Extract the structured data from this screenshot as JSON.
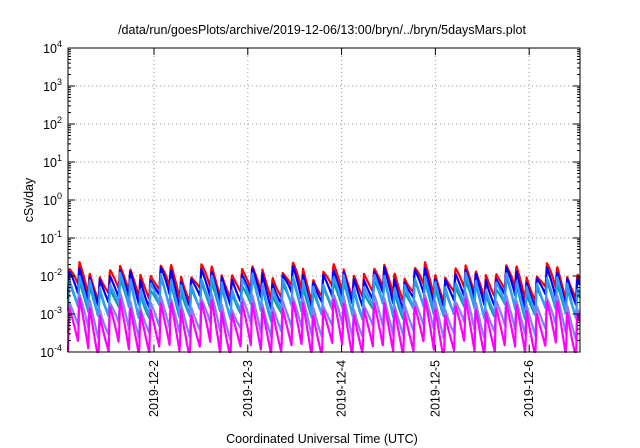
{
  "chart_data": {
    "type": "line",
    "title": "/data/run/goesPlots/archive/2019-12-06/13:00/bryn/../bryn/5daysMars.plot",
    "xlabel": "Coordinated Universal Time (UTC)",
    "ylabel": "cSv/day",
    "x_range": [
      "2019-12-01T02:00",
      "2019-12-06T13:00"
    ],
    "x_ticks": [
      "2019-12-2",
      "2019-12-3",
      "2019-12-4",
      "2019-12-5",
      "2019-12-6"
    ],
    "ylim": [
      0.0001,
      10000
    ],
    "y_scale": "log",
    "y_ticks": [
      {
        "base": "10",
        "exp": "-4"
      },
      {
        "base": "10",
        "exp": "-3"
      },
      {
        "base": "10",
        "exp": "-2"
      },
      {
        "base": "10",
        "exp": "-1"
      },
      {
        "base": "10",
        "exp": "0"
      },
      {
        "base": "10",
        "exp": "1"
      },
      {
        "base": "10",
        "exp": "2"
      },
      {
        "base": "10",
        "exp": "3"
      },
      {
        "base": "10",
        "exp": "4"
      }
    ],
    "grid": true,
    "grid_style": "dotted",
    "series": [
      {
        "color": "#ff0000",
        "peak": 0.014,
        "trough": 0.0035
      },
      {
        "color": "#0000ff",
        "peak": 0.011,
        "trough": 0.0022
      },
      {
        "color": "#00a0a0",
        "peak": 0.0055,
        "trough": 0.0011
      },
      {
        "color": "#3399ff",
        "peak": 0.0075,
        "trough": 0.0012
      },
      {
        "color": "#7f7fff",
        "peak": 0.0022,
        "trough": 0.00035
      },
      {
        "color": "#ff00ff",
        "peak": 0.0016,
        "trough": 0.00011
      }
    ],
    "cycle_hours": 2.6,
    "secondary_hours": 11.0
  }
}
